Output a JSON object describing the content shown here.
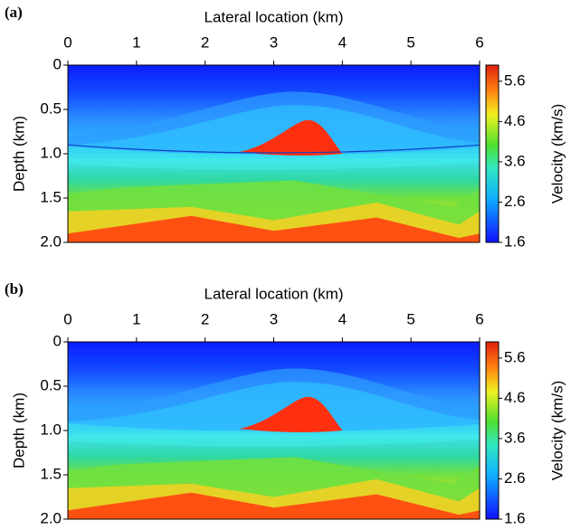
{
  "chart_data": [
    {
      "type": "image",
      "panel_label": "(a)",
      "xlabel": "Lateral location (km)",
      "ylabel": "Depth (km)",
      "colorbar_label": "Velocity (km/s)",
      "xlim": [
        0,
        6
      ],
      "xticks": [
        0,
        1,
        2,
        3,
        4,
        5,
        6
      ],
      "ylim": [
        0,
        2
      ],
      "yticks": [
        0,
        0.5,
        {
          "value": 1,
          "label": "1.0"
        },
        1.5,
        {
          "value": 2,
          "label": "2.0"
        }
      ],
      "clim": [
        1.6,
        6.0
      ],
      "cticks": [
        1.6,
        2.6,
        3.6,
        4.6,
        5.6
      ]
    },
    {
      "type": "image",
      "panel_label": "(b)",
      "xlabel": "Lateral location (km)",
      "ylabel": "Depth (km)",
      "colorbar_label": "Velocity (km/s)",
      "xlim": [
        0,
        6
      ],
      "xticks": [
        0,
        1,
        2,
        3,
        4,
        5,
        6
      ],
      "ylim": [
        0,
        2
      ],
      "yticks": [
        0,
        0.5,
        {
          "value": 1,
          "label": "1.0"
        },
        1.5,
        {
          "value": 2,
          "label": "2.0"
        }
      ],
      "clim": [
        1.6,
        6.0
      ],
      "cticks": [
        1.6,
        2.6,
        3.6,
        4.6,
        5.6
      ]
    }
  ]
}
